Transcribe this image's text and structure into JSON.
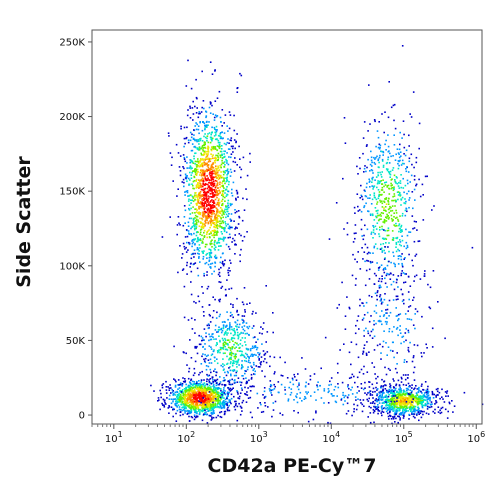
{
  "chart_data": {
    "type": "scatter",
    "subtype": "flow-cytometry-density-dot-plot",
    "title": "",
    "xlabel": "CD42a PE-Cy™7",
    "ylabel": "Side Scatter",
    "x_scale": "log",
    "y_scale": "linear",
    "xlim": [
      5,
      1200000
    ],
    "ylim": [
      -6000,
      258000
    ],
    "x_ticks": [
      {
        "value": 10,
        "label": "10",
        "exp": "1"
      },
      {
        "value": 100,
        "label": "10",
        "exp": "2"
      },
      {
        "value": 1000,
        "label": "10",
        "exp": "3"
      },
      {
        "value": 10000,
        "label": "10",
        "exp": "4"
      },
      {
        "value": 100000,
        "label": "10",
        "exp": "5"
      },
      {
        "value": 1000000,
        "label": "10",
        "exp": "6"
      }
    ],
    "y_ticks": [
      {
        "value": 0,
        "label": "0"
      },
      {
        "value": 50000,
        "label": "50K"
      },
      {
        "value": 100000,
        "label": "100K"
      },
      {
        "value": 150000,
        "label": "150K"
      },
      {
        "value": 200000,
        "label": "200K"
      },
      {
        "value": 250000,
        "label": "250K"
      }
    ],
    "color_scale": [
      "#0000c8",
      "#0096ff",
      "#00e6c8",
      "#64f000",
      "#f0e600",
      "#ff8c00",
      "#ff0000"
    ],
    "populations": [
      {
        "x_center": 200,
        "x_spread_decades": 0.18,
        "y_center": 150000,
        "y_spread": 28000,
        "density": 0.3
      },
      {
        "x_center": 150,
        "x_spread_decades": 0.22,
        "y_center": 12000,
        "y_spread": 6000,
        "density": 0.22
      },
      {
        "x_center": 400,
        "x_spread_decades": 0.25,
        "y_center": 45000,
        "y_spread": 15000,
        "density": 0.1
      },
      {
        "x_center": 100000,
        "x_spread_decades": 0.22,
        "y_center": 10000,
        "y_spread": 5000,
        "density": 0.16
      },
      {
        "x_center": 60000,
        "x_spread_decades": 0.22,
        "y_center": 140000,
        "y_spread": 30000,
        "density": 0.12
      },
      {
        "x_center": 60000,
        "x_spread_decades": 0.3,
        "y_center": 60000,
        "y_spread": 25000,
        "density": 0.05
      },
      {
        "x_center": 5000,
        "x_spread_decades": 0.8,
        "y_center": 15000,
        "y_spread": 8000,
        "density": 0.05
      }
    ],
    "grid": false,
    "legend": "none"
  }
}
